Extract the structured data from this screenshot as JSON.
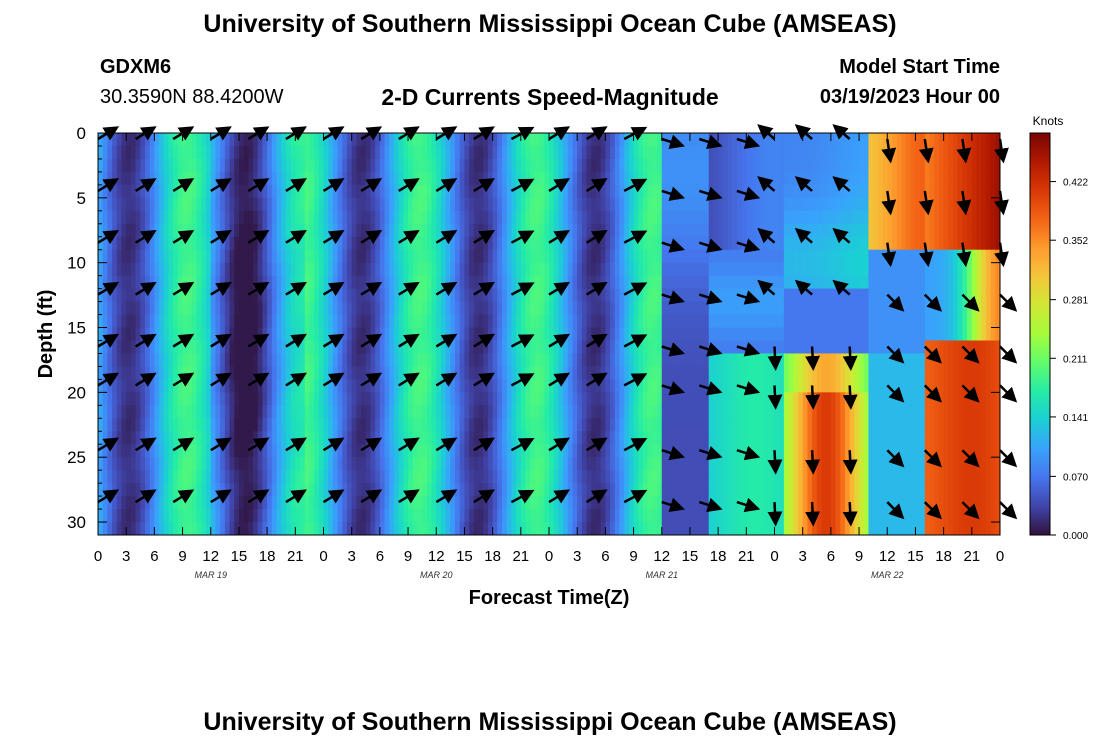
{
  "header": {
    "title": "University of Southern Mississippi Ocean Cube (AMSEAS)",
    "station": "GDXM6",
    "coordinates": "30.3590N  88.4200W",
    "subtitle": "2-D Currents Speed-Magnitude",
    "start_label": "Model Start Time",
    "start_value": "03/19/2023 Hour 00"
  },
  "footer": {
    "title": "University of Southern Mississippi Ocean Cube (AMSEAS)"
  },
  "chart_data": {
    "type": "heatmap",
    "xlabel": "Forecast Time(Z)",
    "ylabel": "Depth (ft)",
    "x_range_hours": [
      0,
      96
    ],
    "y_range_ft": [
      0,
      31
    ],
    "x_tick_labels": [
      "0",
      "3",
      "6",
      "9",
      "12",
      "15",
      "18",
      "21",
      "0",
      "3",
      "6",
      "9",
      "12",
      "15",
      "18",
      "21",
      "0",
      "3",
      "6",
      "9",
      "12",
      "15",
      "18",
      "21",
      "0",
      "3",
      "6",
      "9",
      "12",
      "15",
      "18",
      "21",
      "0"
    ],
    "date_labels": [
      {
        "label": "MAR 19",
        "hour": 12
      },
      {
        "label": "MAR 20",
        "hour": 36
      },
      {
        "label": "MAR 21",
        "hour": 60
      },
      {
        "label": "MAR 22",
        "hour": 84
      }
    ],
    "y_ticks": [
      0,
      5,
      10,
      15,
      20,
      25,
      30
    ],
    "colorbar": {
      "unit": "Knots",
      "ticks": [
        "0.422",
        "0.352",
        "0.281",
        "0.211",
        "0.141",
        "0.070",
        "0.000"
      ],
      "max": 0.48,
      "colors": [
        "#30123b",
        "#4145ab",
        "#4675ed",
        "#39a2fc",
        "#1bcfd4",
        "#24eca6",
        "#61fc6c",
        "#a4fc3b",
        "#d1e834",
        "#f3c63a",
        "#fe9b2d",
        "#f36315",
        "#d93806",
        "#b11901",
        "#7a0403"
      ]
    },
    "vector_rows_ft": [
      0,
      4,
      8,
      12,
      16,
      19,
      24,
      28
    ],
    "vector_columns_hours": [
      0,
      4,
      8,
      12,
      16,
      20,
      24,
      28,
      32,
      36,
      40,
      44,
      48,
      52,
      56,
      60,
      64,
      68,
      72,
      76,
      80,
      84,
      88,
      92,
      96
    ]
  }
}
